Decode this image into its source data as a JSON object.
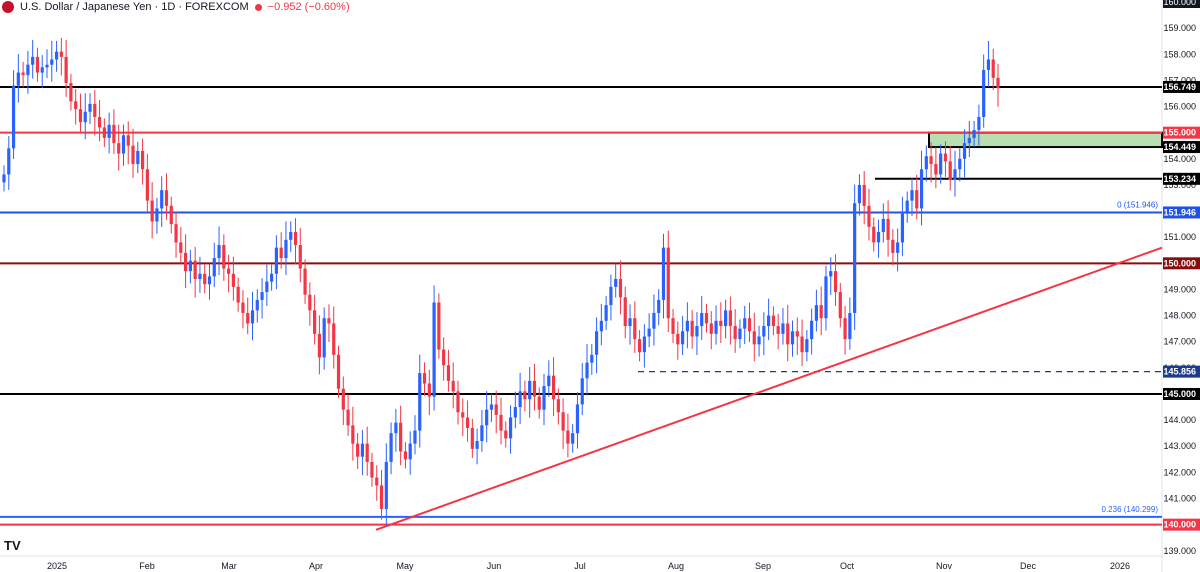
{
  "header": {
    "title": "U.S. Dollar / Japanese Yen · 1D · FOREXCOM",
    "change": "−0.952 (−0.60%)",
    "flag_icon": "us-japan-flag-icon"
  },
  "chart_data": {
    "type": "candlestick",
    "ylim": [
      138.8,
      160.0
    ],
    "y_ticks": [
      139,
      140,
      141,
      142,
      143,
      144,
      145,
      146,
      147,
      148,
      149,
      150,
      151,
      152,
      153,
      154,
      155,
      156,
      157,
      158,
      159,
      160
    ],
    "y_tick_labels": [
      "139.000",
      "140.000",
      "141.000",
      "142.000",
      "143.000",
      "144.000",
      "145.000",
      "146.000",
      "147.000",
      "148.000",
      "149.000",
      "150.000",
      "151.000",
      "152.000",
      "153.000",
      "154.000",
      "155.000",
      "156.000",
      "157.000",
      "158.000",
      "159.000",
      "160.000"
    ],
    "x_labels": [
      "2025",
      "Feb",
      "Mar",
      "Apr",
      "May",
      "Jun",
      "Jul",
      "Aug",
      "Sep",
      "Oct",
      "Nov",
      "Dec",
      "2026"
    ],
    "colors": {
      "up": "#2962ff",
      "down": "#f23645"
    },
    "series_close": [
      153.4,
      154.4,
      156.8,
      157.3,
      157.2,
      157.6,
      157.9,
      157.3,
      157.5,
      157.6,
      157.8,
      158.1,
      157.9,
      156.9,
      156.2,
      155.9,
      155.4,
      155.8,
      156.1,
      155.6,
      155.2,
      154.8,
      155.3,
      154.6,
      154.2,
      154.9,
      154.5,
      153.8,
      154.3,
      153.6,
      152.4,
      151.6,
      152.1,
      152.8,
      152.2,
      151.5,
      150.8,
      150.4,
      149.7,
      150.1,
      149.4,
      149.6,
      149.2,
      149.5,
      150.2,
      150.7,
      149.8,
      149.6,
      149.1,
      148.5,
      148.1,
      147.7,
      148.2,
      148.6,
      148.9,
      149.3,
      149.6,
      150.6,
      150.2,
      150.9,
      151.2,
      150.7,
      149.8,
      148.8,
      148.2,
      147.3,
      146.4,
      147.9,
      147.7,
      146.5,
      145.2,
      144.4,
      143.8,
      143.1,
      142.6,
      143.1,
      142.4,
      141.8,
      141.5,
      140.6,
      142.4,
      143.5,
      143.9,
      142.8,
      142.5,
      143.1,
      143.6,
      145.8,
      145.4,
      144.9,
      148.5,
      146.7,
      146.1,
      145.5,
      145.1,
      144.3,
      144.1,
      143.7,
      142.9,
      143.2,
      143.8,
      144.4,
      144.6,
      144.2,
      143.6,
      143.3,
      144.1,
      144.5,
      145.1,
      144.8,
      145.5,
      144.9,
      144.4,
      145.3,
      145.7,
      144.8,
      144.3,
      143.6,
      143.1,
      143.5,
      144.6,
      145.6,
      146.2,
      146.5,
      147.4,
      147.8,
      148.4,
      149.1,
      149.4,
      148.7,
      147.6,
      147.9,
      147.1,
      146.6,
      147.2,
      147.5,
      148.1,
      148.6,
      150.6,
      147.9,
      147.3,
      146.9,
      147.4,
      147.8,
      147.2,
      147.6,
      148.1,
      147.7,
      147.3,
      147.8,
      147.6,
      148.2,
      147.6,
      147.1,
      147.5,
      147.9,
      147.4,
      146.9,
      147.2,
      147.6,
      148.0,
      147.6,
      147.3,
      147.7,
      146.9,
      147.4,
      147.2,
      146.6,
      147.1,
      147.8,
      148.4,
      147.9,
      149.5,
      149.7,
      148.9,
      147.9,
      147.1,
      148.1,
      152.3,
      153.0,
      152.2,
      151.4,
      150.8,
      151.2,
      151.7,
      150.9,
      150.4,
      150.8,
      151.9,
      152.4,
      152.8,
      152.1,
      153.6,
      154.1,
      153.8,
      153.4,
      154.2,
      153.9,
      153.2,
      153.6,
      154.0,
      154.6,
      154.8,
      155.1,
      155.6,
      157.4,
      157.8,
      157.1,
      156.7
    ],
    "horizontal_levels": [
      {
        "value": 156.749,
        "label": "156.749",
        "color": "#000000",
        "style": "solid"
      },
      {
        "value": 155.0,
        "label": "155.000",
        "color": "#f23645",
        "style": "solid"
      },
      {
        "value": 154.449,
        "label": "154.449",
        "color": "#000000",
        "style": "zone"
      },
      {
        "value": 153.234,
        "label": "153.234",
        "color": "#000000",
        "style": "solid"
      },
      {
        "value": 151.946,
        "label": "151.946",
        "color": "#1e53e5",
        "style": "solid",
        "note": "0 (151.946)"
      },
      {
        "value": 150.0,
        "label": "150.000",
        "color": "#880e0e",
        "style": "solid"
      },
      {
        "value": 145.856,
        "label": "145.856",
        "color": "#1e3a8a",
        "style": "dashed"
      },
      {
        "value": 145.0,
        "label": "145.000",
        "color": "#000000",
        "style": "solid"
      },
      {
        "value": 140.299,
        "label": "",
        "color": "#2962ff",
        "style": "solid",
        "note": "0.236 (140.299)"
      },
      {
        "value": 140.0,
        "label": "140.000",
        "color": "#f23645",
        "style": "solid"
      }
    ],
    "zone": {
      "from": 154.449,
      "to": 155.0,
      "color": "#b7dfb2"
    },
    "trendline": {
      "from": {
        "x": "Apr",
        "y": 139.8
      },
      "to": {
        "x": "2026",
        "y": 150.6
      },
      "color": "#f23645"
    },
    "price_marker": {
      "value": 160.0,
      "label": "160.000"
    }
  }
}
